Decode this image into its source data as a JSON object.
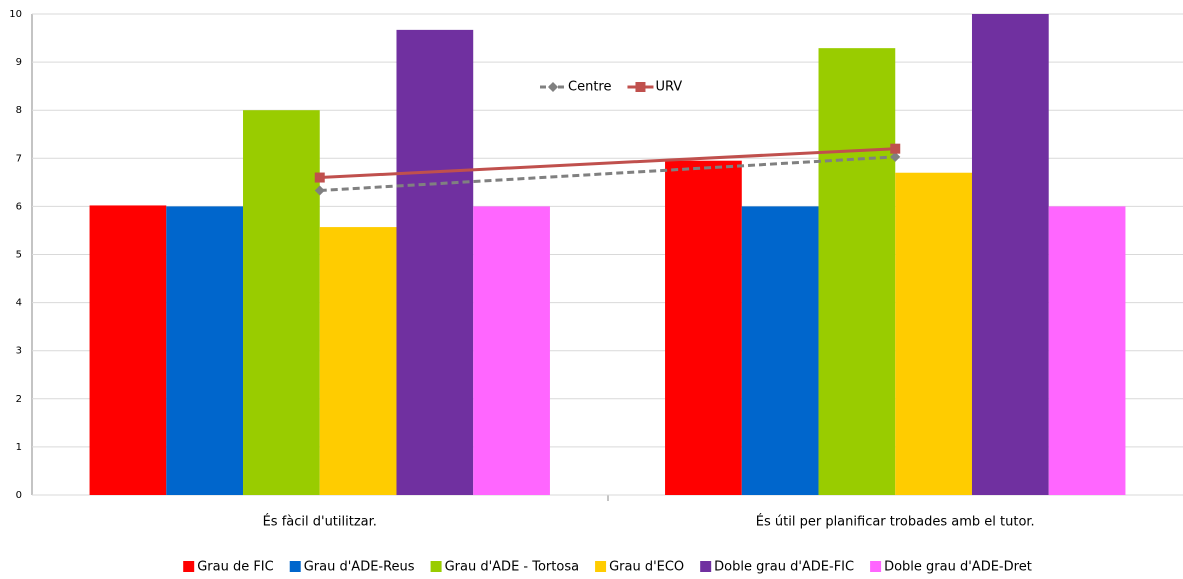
{
  "chart_data": {
    "type": "bar",
    "categories": [
      "És fàcil d'utilitzar.",
      "És útil per planificar trobades amb el tutor."
    ],
    "series": [
      {
        "name": "Grau de FIC",
        "color": "#ff0000",
        "type": "bar",
        "values": [
          6.02,
          6.95
        ]
      },
      {
        "name": "Grau d'ADE-Reus",
        "color": "#0066cc",
        "type": "bar",
        "values": [
          6.0,
          6.0
        ]
      },
      {
        "name": "Grau d'ADE - Tortosa",
        "color": "#99cc00",
        "type": "bar",
        "values": [
          8.0,
          9.29
        ]
      },
      {
        "name": "Grau d'ECO",
        "color": "#ffcc00",
        "type": "bar",
        "values": [
          5.57,
          6.7
        ]
      },
      {
        "name": "Doble grau d'ADE-FIC",
        "color": "#7030a0",
        "type": "bar",
        "values": [
          9.67,
          10
        ]
      },
      {
        "name": "Doble grau d'ADE-Dret",
        "color": "#ff66ff",
        "type": "bar",
        "values": [
          6.0,
          6.0
        ]
      },
      {
        "name": "Centre",
        "color": "#808080",
        "type": "line",
        "dashed": true,
        "marker": "diamond",
        "values": [
          6.33,
          7.03
        ]
      },
      {
        "name": "URV",
        "color": "#c0504d",
        "type": "line",
        "dashed": false,
        "marker": "square",
        "values": [
          6.6,
          7.2
        ]
      }
    ],
    "ylim": [
      0,
      10
    ],
    "yticks": [
      0,
      1,
      2,
      3,
      4,
      5,
      6,
      7,
      8,
      9,
      10
    ],
    "grid": true
  }
}
